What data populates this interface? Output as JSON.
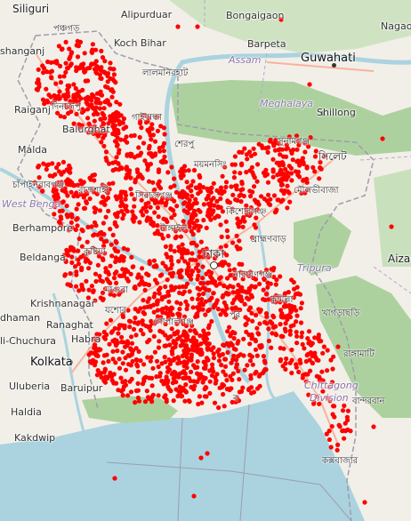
{
  "map": {
    "colors": {
      "land": "#f2efe9",
      "forest": "#add19e",
      "water": "#aad3df",
      "border": "#9e9cab",
      "marker": "#ff0000"
    },
    "labels": {
      "siliguri": "Siliguri",
      "alipurduar": "Alipurduar",
      "bongaigaon": "Bongaigaon",
      "nagaon": "Nagaon",
      "shanganj": "shanganj",
      "panchagarh": "পঞ্চগড়",
      "koch_bihar": "Koch Bihar",
      "barpeta": "Barpeta",
      "assam": "Assam",
      "guwahati": "Guwahati",
      "lalmonirhat": "লালমনিরহাট",
      "raiganj": "Raiganj",
      "dinajpur": "দিনাজপু",
      "gaibandha": "গাইবান্ধা",
      "meghalaya": "Meghalaya",
      "shillong": "Shillong",
      "balurghat": "Balurghat",
      "malda": "Malda",
      "sherpur": "শেরপু",
      "mymensingh": "ময়মনসিং",
      "sunamganj": "সুনামগঞ্জ",
      "sylhet": "সিলেট",
      "chapainawabganj": "চাঁপাইনবাবগঞ্জ",
      "rajshahi": "রাজশাহী",
      "west_bengal": "West Benga",
      "sirajganj": "সিরাজগঞ্জ",
      "moulvibazar": "মৌলভীবাজা",
      "berhampore": "Berhampore",
      "tangail": "টাঙ্গাইল",
      "kishoreganj": "কিশোরগঞ্",
      "brahmanbaria": "ব্রাহ্মণবাড়",
      "aizawl": "Aizaw",
      "beldanga": "Beldanga",
      "kushtia": "কুষ্টিয়া",
      "dhaka": "ঢাকা",
      "tripura": "Tripura",
      "narayanganj": "নারায়ণগঞ্জ",
      "krishnanagar": "Krishnanagar",
      "magura": "মাগুরা",
      "comilla": "কুমিল্লা",
      "dhaman": "dhaman",
      "jessore": "যশোর",
      "gopalganj": "গোপালগঞ্জ",
      "chandpur": "পুর",
      "khagrachhari": "খাগড়াছড়ি",
      "ranaghat": "Ranaghat",
      "chuchura": "li-Chuchura",
      "habra": "Habra",
      "rangamati": "রাঙ্গামাটি",
      "kolkata": "Kolkata",
      "chittagong": "Chittagong",
      "uluberia": "Uluberia",
      "baruipur": "Baruipur",
      "division": "Division",
      "bandarban": "বান্দরবান",
      "haldia": "Haldia",
      "kakdwip": "Kakdwip",
      "coxs_bazar": "কক্সবাজার",
      "barisal": "ব"
    },
    "markers_description": "dense red point cluster"
  }
}
